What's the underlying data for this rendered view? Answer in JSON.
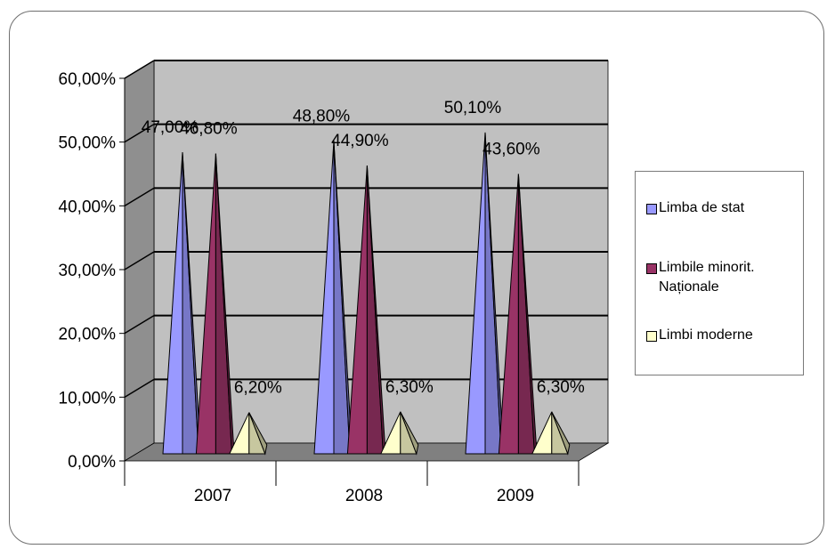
{
  "chart_data": {
    "type": "bar",
    "bar_shape": "3d-pyramid",
    "categories": [
      "2007",
      "2008",
      "2009"
    ],
    "series": [
      {
        "name": "Limba de stat",
        "color": "#9999ff",
        "values": [
          47.0,
          48.8,
          50.1
        ],
        "labels": [
          "47,00%",
          "48,80%",
          "50,10%"
        ]
      },
      {
        "name": "Limbile minorit.\nNaționale",
        "color": "#993366",
        "values": [
          46.8,
          44.9,
          43.6
        ],
        "labels": [
          "46,80%",
          "44,90%",
          "43,60%"
        ]
      },
      {
        "name": "Limbi moderne",
        "color": "#ffffcc",
        "values": [
          6.2,
          6.3,
          6.3
        ],
        "labels": [
          "6,20%",
          "6,30%",
          "6,30%"
        ]
      }
    ],
    "ylim": [
      0,
      60
    ],
    "yticks": [
      0,
      10,
      20,
      30,
      40,
      50,
      60
    ],
    "ytick_labels": [
      "0,00%",
      "10,00%",
      "20,00%",
      "30,00%",
      "40,00%",
      "50,00%",
      "60,00%"
    ],
    "grid": true,
    "wall_color": "#c0c0c0",
    "floor_color": "#808080",
    "legend_position": "right"
  }
}
